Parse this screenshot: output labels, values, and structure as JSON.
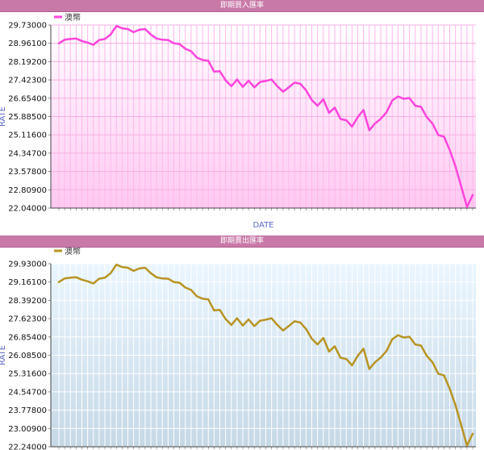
{
  "chart_data": [
    {
      "type": "line",
      "title": "即期買入匯率",
      "xlabel": "DATE",
      "ylabel": "RATE",
      "ylim": [
        22.04,
        29.73
      ],
      "yticks": [
        "29.73000",
        "28.96100",
        "28.19200",
        "27.42300",
        "26.65400",
        "25.88500",
        "25.11600",
        "24.34700",
        "23.57800",
        "22.80900",
        "22.04000"
      ],
      "legend": "top-left",
      "grid": true,
      "series": [
        {
          "name": "澳幣",
          "color": "#ff44dd",
          "values": [
            28.96,
            29.11,
            29.14,
            29.16,
            29.06,
            28.99,
            28.9,
            29.1,
            29.14,
            29.33,
            29.69,
            29.59,
            29.56,
            29.43,
            29.53,
            29.56,
            29.33,
            29.16,
            29.11,
            29.1,
            28.96,
            28.93,
            28.73,
            28.63,
            28.36,
            28.26,
            28.23,
            27.77,
            27.79,
            27.41,
            27.16,
            27.44,
            27.13,
            27.39,
            27.11,
            27.34,
            27.38,
            27.44,
            27.16,
            26.93,
            27.11,
            27.31,
            27.26,
            26.99,
            26.58,
            26.34,
            26.61,
            26.04,
            26.26,
            25.78,
            25.73,
            25.46,
            25.86,
            26.16,
            25.31,
            25.59,
            25.79,
            26.06,
            26.56,
            26.73,
            26.63,
            26.66,
            26.34,
            26.29,
            25.86,
            25.59,
            25.11,
            25.04,
            24.48,
            23.79,
            22.94,
            22.09,
            22.59
          ]
        }
      ]
    },
    {
      "type": "line",
      "title": "即期賣出匯率",
      "xlabel": "",
      "ylabel": "RATE",
      "ylim": [
        22.24,
        29.93
      ],
      "yticks": [
        "29.93000",
        "29.16100",
        "28.39200",
        "27.62300",
        "26.85400",
        "26.08500",
        "25.31600",
        "24.54700",
        "23.77800",
        "23.00900",
        "22.24000"
      ],
      "legend": "top-left",
      "grid": true,
      "series": [
        {
          "name": "澳幣",
          "color": "#b89423",
          "values": [
            29.16,
            29.31,
            29.34,
            29.36,
            29.26,
            29.19,
            29.1,
            29.3,
            29.34,
            29.53,
            29.89,
            29.79,
            29.76,
            29.63,
            29.73,
            29.76,
            29.53,
            29.36,
            29.31,
            29.3,
            29.16,
            29.13,
            28.93,
            28.83,
            28.56,
            28.46,
            28.43,
            27.97,
            27.99,
            27.61,
            27.36,
            27.64,
            27.33,
            27.59,
            27.31,
            27.54,
            27.58,
            27.64,
            27.36,
            27.13,
            27.31,
            27.51,
            27.46,
            27.19,
            26.78,
            26.54,
            26.81,
            26.24,
            26.46,
            25.98,
            25.93,
            25.66,
            26.06,
            26.36,
            25.51,
            25.79,
            25.99,
            26.26,
            26.76,
            26.93,
            26.83,
            26.86,
            26.54,
            26.49,
            26.06,
            25.79,
            25.31,
            25.24,
            24.68,
            23.99,
            23.14,
            22.29,
            22.79
          ]
        }
      ]
    }
  ]
}
